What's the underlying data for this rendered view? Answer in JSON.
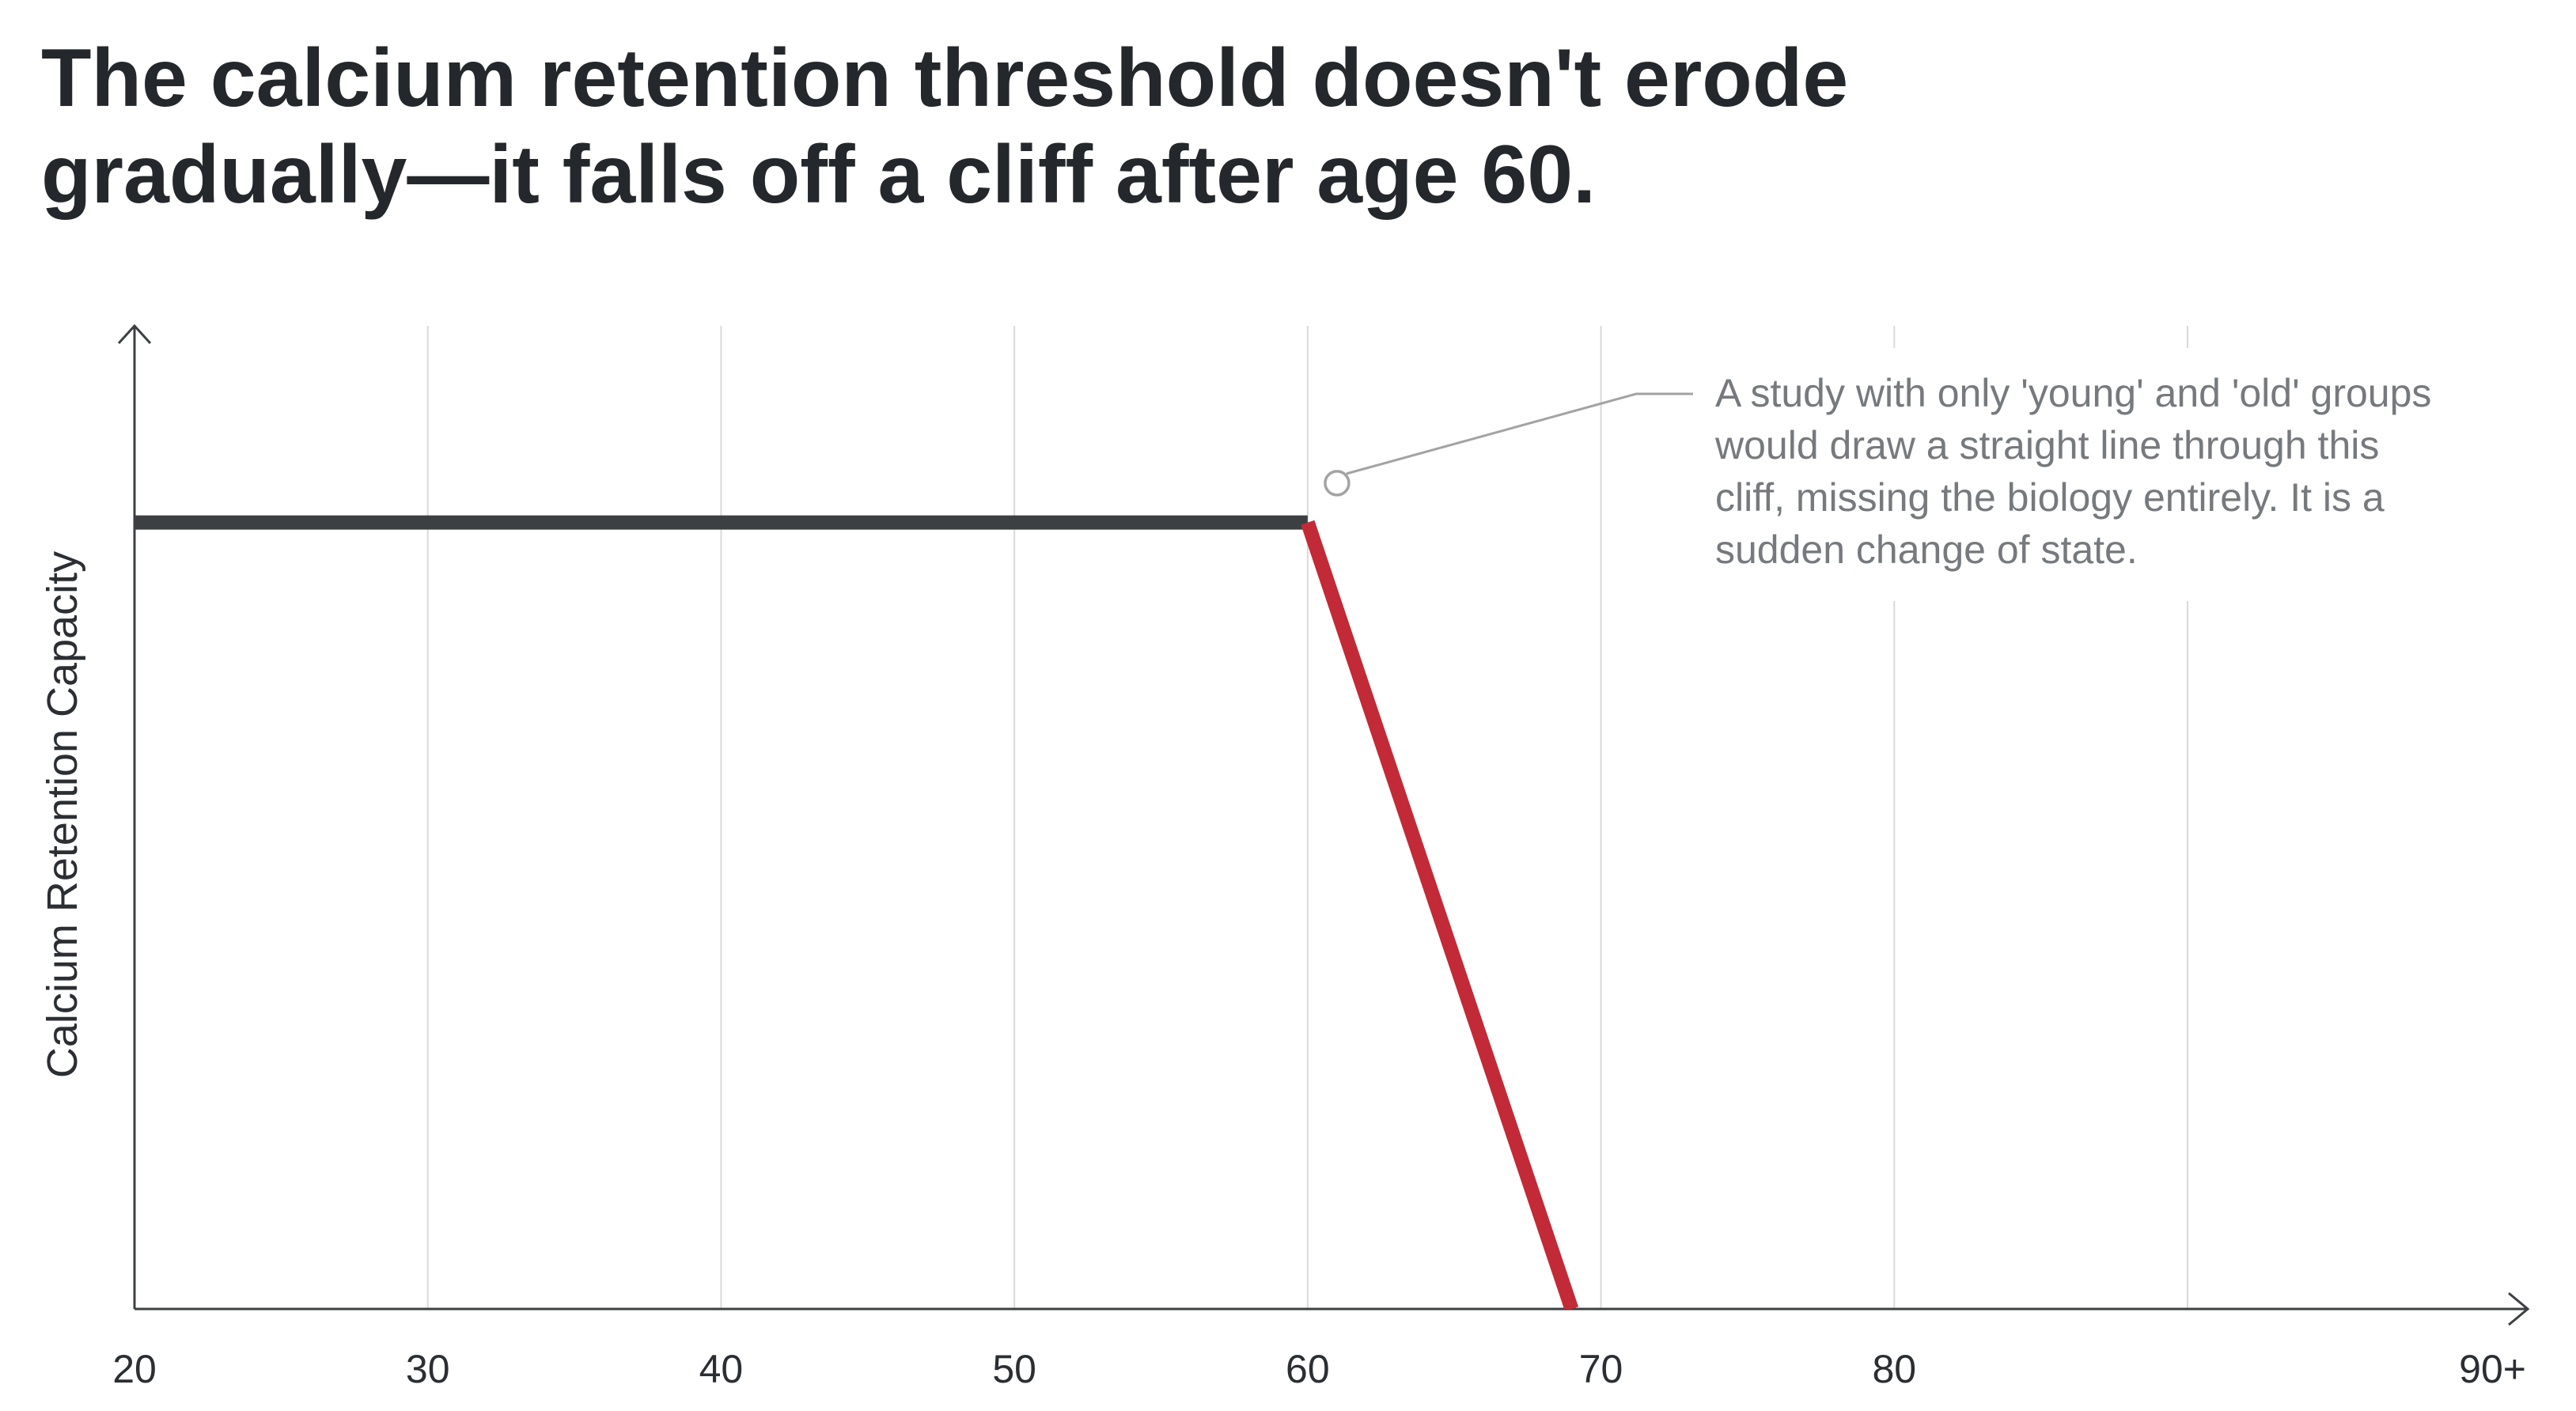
{
  "chart_data": {
    "type": "line",
    "title_lines": [
      "The calcium retention threshold doesn't erode",
      "gradually—it falls off a cliff after age 60."
    ],
    "xlabel": "",
    "ylabel": "Calcium Retention Capacity",
    "x_ticks": [
      {
        "value": 20,
        "label": "20"
      },
      {
        "value": 30,
        "label": "30"
      },
      {
        "value": 40,
        "label": "40"
      },
      {
        "value": 50,
        "label": "50"
      },
      {
        "value": 60,
        "label": "60"
      },
      {
        "value": 70,
        "label": "70"
      },
      {
        "value": 80,
        "label": "80"
      },
      {
        "value": 90,
        "label": "90+"
      }
    ],
    "xlim": [
      20,
      90
    ],
    "ylim": [
      0,
      100
    ],
    "y_ticks_shown": false,
    "grid": {
      "vertical": true,
      "horizontal": false
    },
    "series": [
      {
        "segments": [
          {
            "points": [
              [
                20,
                80
              ],
              [
                60,
                80
              ]
            ],
            "color": "#3c4043"
          },
          {
            "points": [
              [
                60,
                80
              ],
              [
                69,
                0
              ]
            ],
            "color": "#c12a36"
          }
        ]
      }
    ],
    "annotation": {
      "text_lines": [
        "A study with only 'young' and 'old' groups",
        "would draw a straight line through this",
        "cliff, missing the biology entirely. It is a",
        "sudden change of state."
      ],
      "point": [
        61,
        84
      ],
      "placement": "top-right"
    },
    "colors": {
      "flat_line": "#3c4043",
      "cliff_line": "#c12a36",
      "title": "#24272b",
      "axis": "#3c4043",
      "grid": "#d9d9d9",
      "annotation_text": "#76797d",
      "annotation_leader": "#a3a3a3"
    }
  }
}
